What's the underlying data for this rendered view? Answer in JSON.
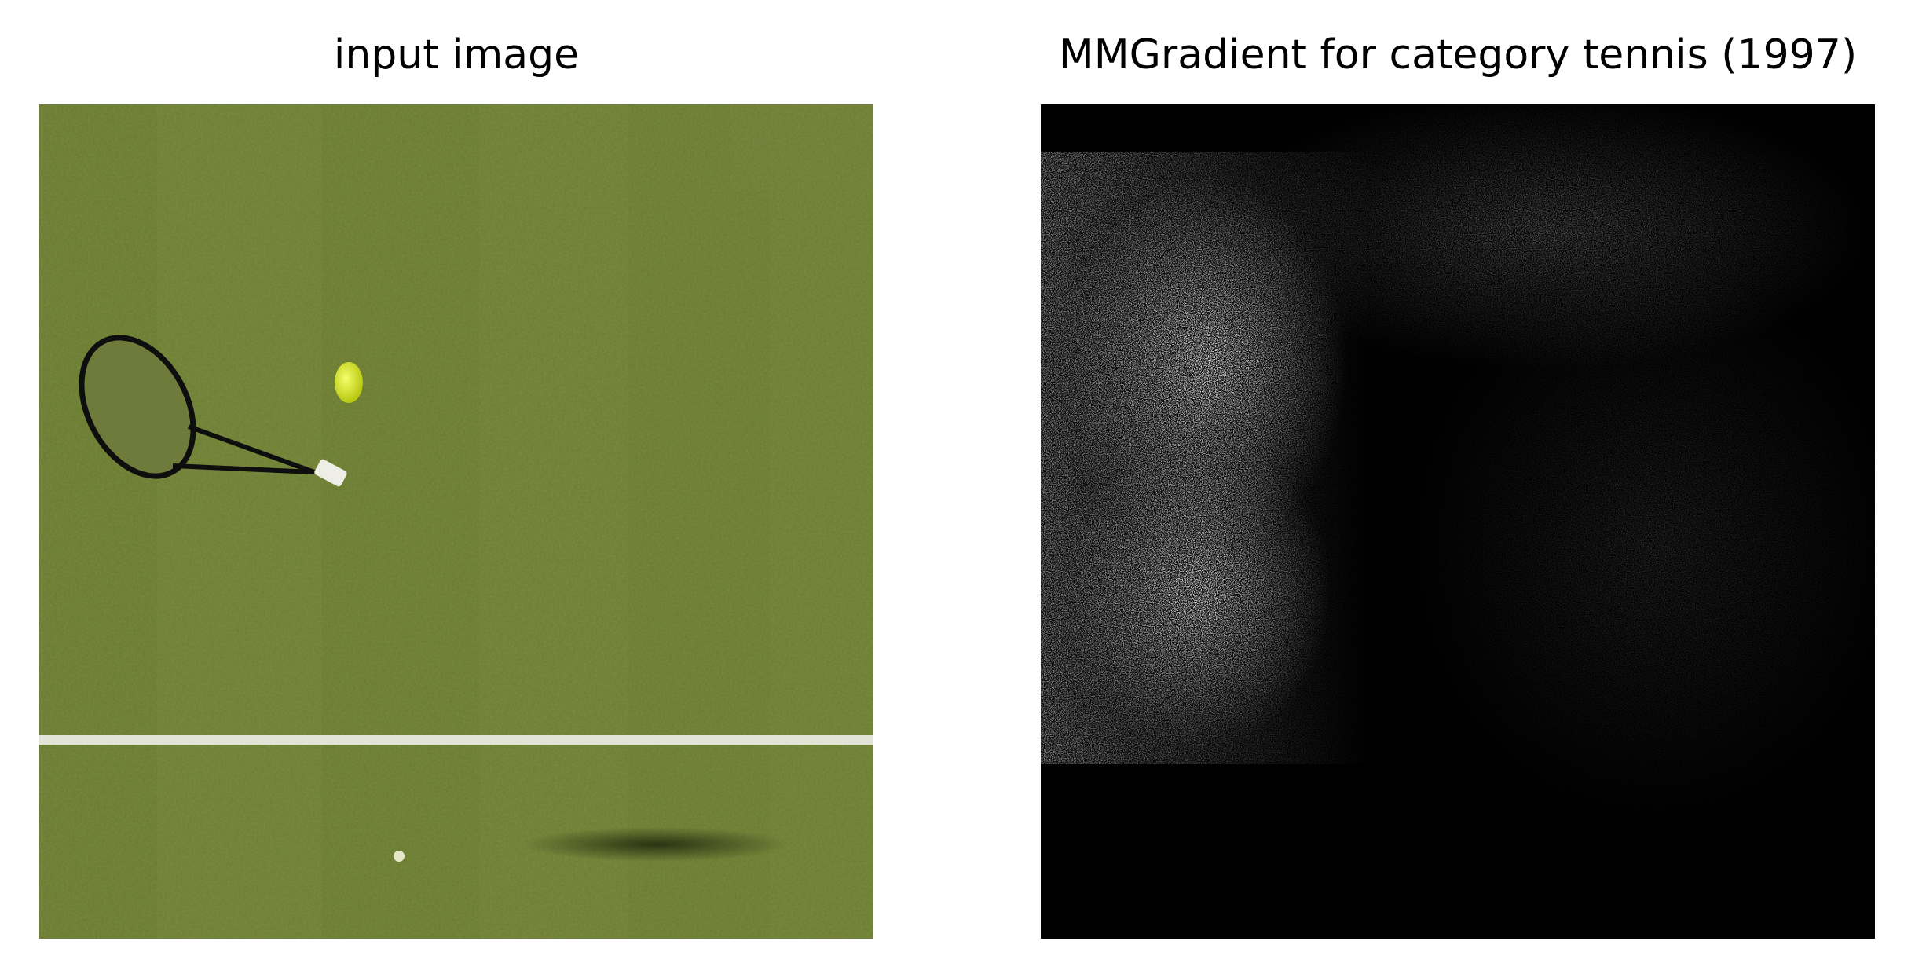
{
  "panels": {
    "left": {
      "title": "input image"
    },
    "right": {
      "title": "MMGradient for category tennis (1997)"
    }
  },
  "colors": {
    "grass_dark": "#5b6e22",
    "grass_light": "#7d8f3a",
    "court_line": "#e6e6dc",
    "ball": "#d9e820",
    "racket_frame": "#111111",
    "saliency_bg": "#000000",
    "saliency_highlight": "#ffffff"
  }
}
